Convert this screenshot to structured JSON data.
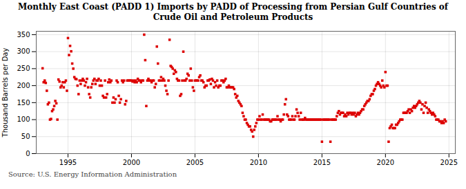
{
  "chart_data": {
    "type": "scatter",
    "title": "Monthly East Coast (PADD 1) Imports by PADD of Processing from Persian Gulf Countries of\nCrude Oil and Petroleum Products",
    "ylabel": "Thousand Barrels per Day",
    "caption": "Source: U.S. Energy Information Administration",
    "color": "#dd0000",
    "marker": "square",
    "grid": true,
    "xlim": [
      1992.5,
      2025.5
    ],
    "xticks": [
      1995,
      2000,
      2005,
      2010,
      2015,
      2020,
      2025
    ],
    "ylim": [
      0,
      360
    ],
    "yticks": [
      0,
      50,
      100,
      150,
      200,
      250,
      300,
      350
    ],
    "x": [
      1993,
      1993.0833,
      1993.1667,
      1993.25,
      1993.3333,
      1993.4167,
      1993.5,
      1993.5833,
      1993.6667,
      1993.75,
      1993.8333,
      1993.9167,
      1994,
      1994.0833,
      1994.1667,
      1994.25,
      1994.3333,
      1994.4167,
      1994.5,
      1994.5833,
      1994.6667,
      1994.75,
      1994.8333,
      1994.9167,
      1995,
      1995.0833,
      1995.1667,
      1995.25,
      1995.3333,
      1995.4167,
      1995.5,
      1995.5833,
      1995.6667,
      1995.75,
      1995.8333,
      1995.9167,
      1996,
      1996.0833,
      1996.1667,
      1996.25,
      1996.3333,
      1996.4167,
      1996.5,
      1996.5833,
      1996.6667,
      1996.75,
      1996.8333,
      1996.9167,
      1997,
      1997.0833,
      1997.1667,
      1997.25,
      1997.3333,
      1997.4167,
      1997.5,
      1997.5833,
      1997.6667,
      1997.75,
      1997.8333,
      1997.9167,
      1998,
      1998.0833,
      1998.1667,
      1998.25,
      1998.3333,
      1998.4167,
      1998.5,
      1998.5833,
      1998.6667,
      1998.75,
      1998.8333,
      1998.9167,
      1999,
      1999.0833,
      1999.1667,
      1999.25,
      1999.3333,
      1999.4167,
      1999.5,
      1999.5833,
      1999.6667,
      1999.75,
      1999.8333,
      1999.9167,
      2000,
      2000.0833,
      2000.1667,
      2000.25,
      2000.3333,
      2000.4167,
      2000.5,
      2000.5833,
      2000.6667,
      2000.75,
      2000.8333,
      2000.9167,
      2001,
      2001.0833,
      2001.1667,
      2001.25,
      2001.3333,
      2001.4167,
      2001.5,
      2001.5833,
      2001.6667,
      2001.75,
      2001.8333,
      2001.9167,
      2002,
      2002.0833,
      2002.1667,
      2002.25,
      2002.3333,
      2002.4167,
      2002.5,
      2002.5833,
      2002.6667,
      2002.75,
      2002.8333,
      2002.9167,
      2003,
      2003.0833,
      2003.1667,
      2003.25,
      2003.3333,
      2003.4167,
      2003.5,
      2003.5833,
      2003.6667,
      2003.75,
      2003.8333,
      2003.9167,
      2004,
      2004.0833,
      2004.1667,
      2004.25,
      2004.3333,
      2004.4167,
      2004.5,
      2004.5833,
      2004.6667,
      2004.75,
      2004.8333,
      2004.9167,
      2005,
      2005.0833,
      2005.1667,
      2005.25,
      2005.3333,
      2005.4167,
      2005.5,
      2005.5833,
      2005.6667,
      2005.75,
      2005.8333,
      2005.9167,
      2006,
      2006.0833,
      2006.1667,
      2006.25,
      2006.3333,
      2006.4167,
      2006.5,
      2006.5833,
      2006.6667,
      2006.75,
      2006.8333,
      2006.9167,
      2007,
      2007.0833,
      2007.1667,
      2007.25,
      2007.3333,
      2007.4167,
      2007.5,
      2007.5833,
      2007.6667,
      2007.75,
      2007.8333,
      2007.9167,
      2008,
      2008.0833,
      2008.1667,
      2008.25,
      2008.3333,
      2008.4167,
      2008.5,
      2008.5833,
      2008.6667,
      2008.75,
      2008.8333,
      2008.9167,
      2009,
      2009.0833,
      2009.1667,
      2009.25,
      2009.3333,
      2009.4167,
      2009.5,
      2009.5833,
      2009.6667,
      2009.75,
      2009.8333,
      2009.9167,
      2010,
      2010.0833,
      2010.1667,
      2010.25,
      2010.3333,
      2010.4167,
      2010.5,
      2010.5833,
      2010.6667,
      2010.75,
      2010.8333,
      2010.9167,
      2011,
      2011.0833,
      2011.1667,
      2011.25,
      2011.3333,
      2011.4167,
      2011.5,
      2011.5833,
      2011.6667,
      2011.75,
      2011.8333,
      2011.9167,
      2012,
      2012.0833,
      2012.1667,
      2012.25,
      2012.3333,
      2012.4167,
      2012.5,
      2012.5833,
      2012.6667,
      2012.75,
      2012.8333,
      2012.9167,
      2013,
      2013.0833,
      2013.1667,
      2013.25,
      2013.3333,
      2013.4167,
      2013.5,
      2013.5833,
      2013.6667,
      2013.75,
      2013.8333,
      2013.9167,
      2014,
      2014.0833,
      2014.1667,
      2014.25,
      2014.3333,
      2014.4167,
      2014.5,
      2014.5833,
      2014.6667,
      2014.75,
      2014.8333,
      2014.9167,
      2015,
      2015.0833,
      2015.1667,
      2015.25,
      2015.3333,
      2015.4167,
      2015.5,
      2015.5833,
      2015.6667,
      2015.75,
      2015.8333,
      2015.9167,
      2016,
      2016.0833,
      2016.1667,
      2016.25,
      2016.3333,
      2016.4167,
      2016.5,
      2016.5833,
      2016.6667,
      2016.75,
      2016.8333,
      2016.9167,
      2017,
      2017.0833,
      2017.1667,
      2017.25,
      2017.3333,
      2017.4167,
      2017.5,
      2017.5833,
      2017.6667,
      2017.75,
      2017.8333,
      2017.9167,
      2018,
      2018.0833,
      2018.1667,
      2018.25,
      2018.3333,
      2018.4167,
      2018.5,
      2018.5833,
      2018.6667,
      2018.75,
      2018.8333,
      2018.9167,
      2019,
      2019.0833,
      2019.1667,
      2019.25,
      2019.3333,
      2019.4167,
      2019.5,
      2019.5833,
      2019.6667,
      2019.75,
      2019.8333,
      2019.9167,
      2020,
      2020.0833,
      2020.1667,
      2020.25,
      2020.3333,
      2020.4167,
      2020.5,
      2020.5833,
      2020.6667,
      2020.75,
      2020.8333,
      2020.9167,
      2021,
      2021.0833,
      2021.1667,
      2021.25,
      2021.3333,
      2021.4167,
      2021.5,
      2021.5833,
      2021.6667,
      2021.75,
      2021.8333,
      2021.9167,
      2022,
      2022.0833,
      2022.1667,
      2022.25,
      2022.3333,
      2022.4167,
      2022.5,
      2022.5833,
      2022.6667,
      2022.75,
      2022.8333,
      2022.9167,
      2023,
      2023.0833,
      2023.1667,
      2023.25,
      2023.3333,
      2023.4167,
      2023.5,
      2023.5833,
      2023.6667,
      2023.75,
      2023.8333,
      2023.9167,
      2024,
      2024.0833,
      2024.1667,
      2024.25,
      2024.3333,
      2024.4167,
      2024.5,
      2024.5833,
      2024.6667,
      2024.75
    ],
    "values": [
      251,
      210,
      215,
      208,
      185,
      145,
      150,
      100,
      102,
      125,
      130,
      140,
      155,
      148,
      100,
      218,
      212,
      195,
      200,
      210,
      195,
      210,
      215,
      185,
      340,
      290,
      317,
      301,
      265,
      250,
      225,
      220,
      219,
      200,
      175,
      215,
      205,
      215,
      220,
      215,
      200,
      210,
      220,
      195,
      175,
      165,
      195,
      205,
      215,
      220,
      205,
      215,
      215,
      220,
      200,
      215,
      200,
      170,
      165,
      215,
      165,
      175,
      210,
      218,
      210,
      215,
      150,
      165,
      150,
      160,
      215,
      210,
      170,
      150,
      160,
      215,
      210,
      215,
      145,
      155,
      215,
      215,
      215,
      215,
      215,
      212,
      215,
      210,
      215,
      210,
      220,
      215,
      215,
      210,
      215,
      215,
      350,
      275,
      140,
      215,
      220,
      215,
      215,
      210,
      215,
      215,
      195,
      205,
      315,
      265,
      215,
      215,
      225,
      215,
      220,
      215,
      200,
      185,
      175,
      215,
      335,
      258,
      255,
      250,
      235,
      245,
      240,
      220,
      215,
      215,
      170,
      175,
      215,
      300,
      215,
      215,
      220,
      235,
      230,
      215,
      250,
      215,
      195,
      185,
      215,
      215,
      215,
      215,
      225,
      230,
      215,
      215,
      210,
      195,
      200,
      200,
      215,
      215,
      218,
      205,
      220,
      215,
      195,
      210,
      200,
      215,
      195,
      200,
      200,
      215,
      215,
      210,
      215,
      220,
      195,
      195,
      200,
      195,
      195,
      195,
      195,
      190,
      175,
      165,
      170,
      155,
      150,
      145,
      140,
      120,
      110,
      100,
      100,
      90,
      85,
      80,
      80,
      70,
      65,
      50,
      70,
      80,
      90,
      100,
      100,
      110,
      100,
      100,
      115,
      100,
      100,
      100,
      100,
      100,
      100,
      95,
      95,
      100,
      100,
      100,
      100,
      100,
      110,
      100,
      100,
      95,
      100,
      100,
      115,
      145,
      160,
      115,
      110,
      100,
      100,
      100,
      110,
      100,
      100,
      110,
      130,
      120,
      110,
      100,
      120,
      100,
      100,
      100,
      105,
      100,
      100,
      100,
      100,
      100,
      100,
      100,
      100,
      100,
      100,
      100,
      100,
      100,
      100,
      100,
      35,
      100,
      100,
      100,
      100,
      100,
      100,
      100,
      35,
      100,
      100,
      100,
      100,
      100,
      110,
      120,
      125,
      115,
      120,
      120,
      120,
      110,
      115,
      110,
      120,
      115,
      120,
      120,
      115,
      120,
      115,
      120,
      110,
      115,
      120,
      115,
      120,
      125,
      130,
      130,
      140,
      145,
      150,
      155,
      155,
      160,
      170,
      175,
      175,
      185,
      190,
      200,
      205,
      210,
      205,
      200,
      195,
      215,
      200,
      195,
      240,
      200,
      200,
      35,
      75,
      80,
      85,
      75,
      75,
      75,
      85,
      85,
      90,
      95,
      100,
      100,
      100,
      120,
      120,
      120,
      120,
      125,
      130,
      120,
      130,
      125,
      135,
      140,
      135,
      140,
      145,
      150,
      155,
      150,
      130,
      145,
      120,
      140,
      150,
      135,
      120,
      130,
      125,
      120,
      115,
      120,
      115,
      110,
      100,
      100,
      100,
      95,
      95,
      90,
      95,
      90,
      100,
      95
    ]
  }
}
